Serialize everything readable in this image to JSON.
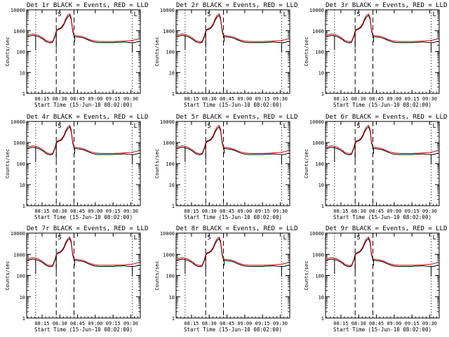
{
  "chart_data": {
    "type": "line",
    "xlabel": "Start Time (15-Jun-10 08:02:00)",
    "ylabel": "Counts/sec",
    "x_tick_labels": [
      "08:15",
      "08:30",
      "08:45",
      "09:00",
      "09:15",
      "09:30"
    ],
    "x_ticks_hours": [
      8.25,
      8.5,
      8.75,
      9.0,
      9.25,
      9.5
    ],
    "xlim_hours": [
      8.0333,
      9.6333
    ],
    "y_scale": "log",
    "ylim": [
      1,
      10000
    ],
    "y_tick_labels": [
      "1",
      "10",
      "100",
      "1000",
      "10000"
    ],
    "grid": false,
    "legend": "in title",
    "colors": {
      "events": "#000000",
      "lld": "#e00000"
    },
    "markers": [
      {
        "label": "",
        "time_hours": 8.16,
        "style": "dotted"
      },
      {
        "label": "S",
        "time_hours": 8.45,
        "style": "dashed"
      },
      {
        "label": "",
        "time_hours": 8.7,
        "style": "dashed"
      },
      {
        "label": "L",
        "time_hours": 9.52,
        "style": "dotted"
      }
    ],
    "series": [
      {
        "name": "BLACK = Events",
        "x": [
          8.04,
          8.08,
          8.12,
          8.16,
          8.2,
          8.24,
          8.28,
          8.3,
          8.34,
          8.37,
          8.4,
          8.43,
          8.45,
          8.47,
          8.5,
          8.53,
          8.56,
          8.58,
          8.61,
          8.64,
          8.66,
          8.68,
          8.7,
          8.72,
          8.75,
          8.8,
          8.85,
          8.9,
          8.95,
          9.0,
          9.05,
          9.1,
          9.15,
          9.2,
          9.25,
          9.3,
          9.35,
          9.4,
          9.45,
          9.5,
          9.55,
          9.6,
          9.62
        ],
        "y": [
          500,
          560,
          600,
          560,
          520,
          440,
          360,
          310,
          270,
          260,
          280,
          500,
          900,
          1100,
          1200,
          1400,
          2000,
          3000,
          4500,
          5500,
          3500,
          1000,
          550,
          520,
          500,
          480,
          430,
          360,
          310,
          280,
          270,
          270,
          270,
          270,
          270,
          280,
          280,
          290,
          280,
          270,
          270,
          300,
          320
        ]
      },
      {
        "name": "RED = LLD",
        "x": [
          8.04,
          8.08,
          8.12,
          8.16,
          8.2,
          8.24,
          8.28,
          8.3,
          8.34,
          8.37,
          8.4,
          8.43,
          8.45,
          8.47,
          8.5,
          8.53,
          8.56,
          8.58,
          8.61,
          8.64,
          8.66,
          8.68,
          8.7,
          8.72,
          8.75,
          8.8,
          8.85,
          8.9,
          8.95,
          9.0,
          9.05,
          9.1,
          9.15,
          9.2,
          9.25,
          9.3,
          9.35,
          9.4,
          9.45,
          9.5,
          9.55,
          9.6,
          9.62
        ],
        "y": [
          580,
          650,
          700,
          660,
          600,
          500,
          410,
          350,
          310,
          290,
          310,
          560,
          1000,
          1200,
          1300,
          1600,
          2300,
          3600,
          5500,
          6500,
          4200,
          1200,
          620,
          590,
          570,
          540,
          480,
          400,
          350,
          320,
          310,
          305,
          305,
          305,
          305,
          310,
          315,
          320,
          330,
          340,
          360,
          400,
          430
        ]
      }
    ],
    "panels": [
      {
        "title": "Det 1r  BLACK = Events, RED = LLD"
      },
      {
        "title": "Det 2r  BLACK = Events, RED = LLD"
      },
      {
        "title": "Det 3r  BLACK = Events, RED = LLD"
      },
      {
        "title": "Det 4r  BLACK = Events, RED = LLD"
      },
      {
        "title": "Det 5r  BLACK = Events, RED = LLD"
      },
      {
        "title": "Det 6r  BLACK = Events, RED = LLD"
      },
      {
        "title": "Det 7r  BLACK = Events, RED = LLD"
      },
      {
        "title": "Det 8r  BLACK = Events, RED = LLD"
      },
      {
        "title": "Det 9r  BLACK = Events, RED = LLD"
      }
    ]
  }
}
